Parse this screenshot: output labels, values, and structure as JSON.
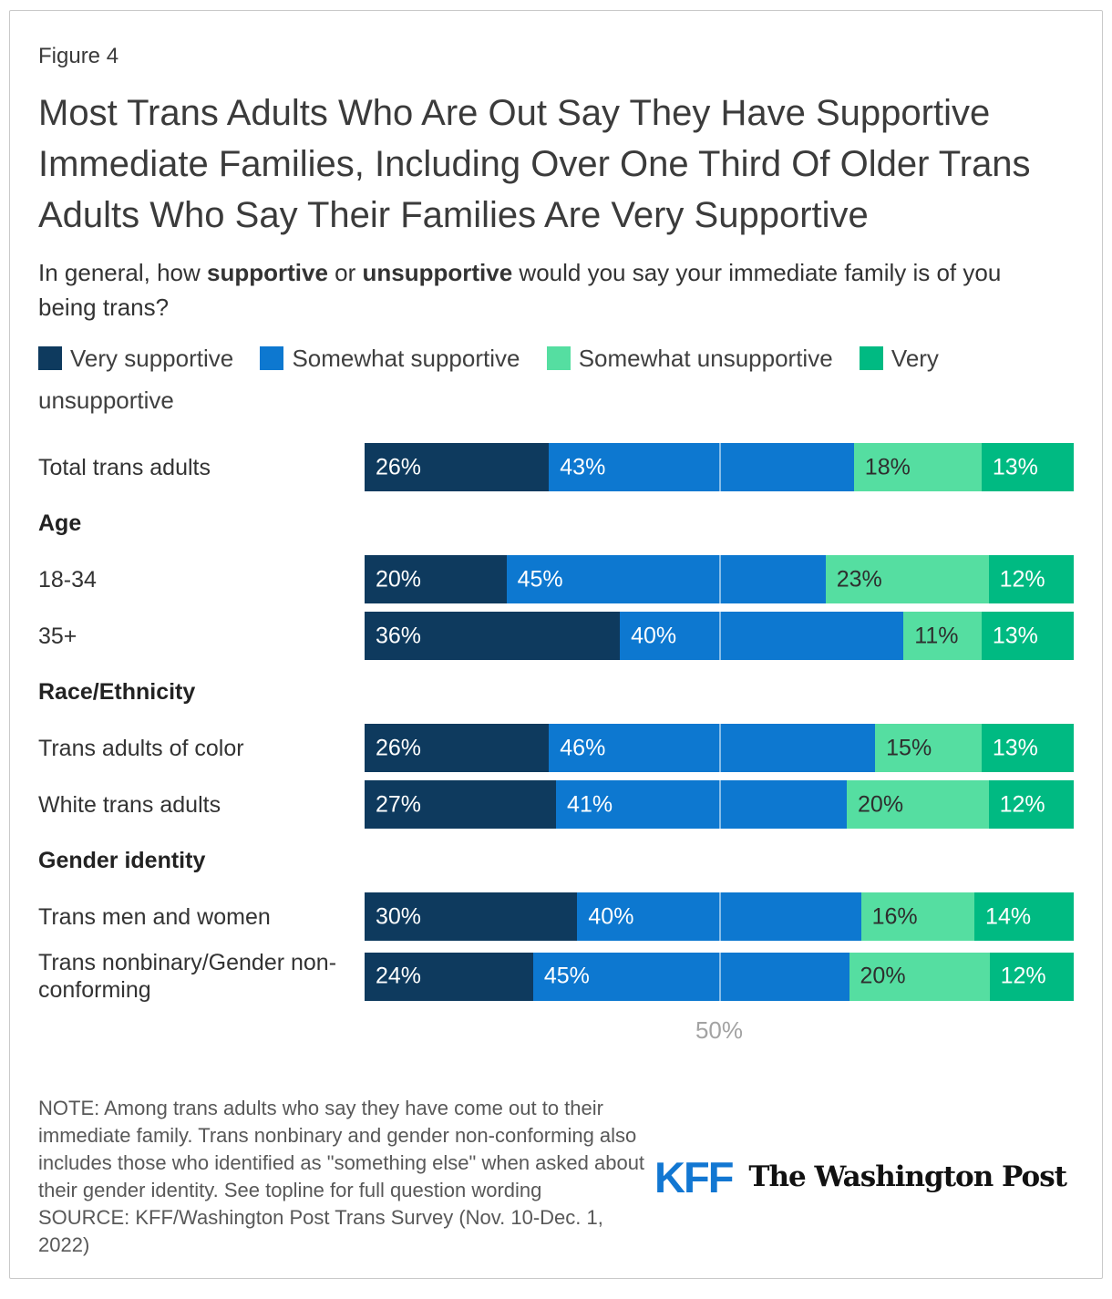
{
  "card": {
    "figure_label": "Figure 4",
    "title": "Most Trans Adults Who Are Out Say They Have Supportive Immediate Families, Including Over One Third Of Older Trans Adults Who Say Their Families Are Very Supportive",
    "question": {
      "prefix": "In general, how ",
      "bold1": "supportive",
      "middle": " or ",
      "bold2": "unsupportive",
      "suffix": " would you say your immediate family is of you being trans?"
    }
  },
  "legend": {
    "items": [
      {
        "label": "Very supportive",
        "color": "#0e3a5e"
      },
      {
        "label": "Somewhat supportive",
        "color": "#0d78d0"
      },
      {
        "label": "Somewhat unsupportive",
        "color": "#55dea1"
      },
      {
        "label": "Very unsupportive",
        "color": "#00ba82"
      }
    ]
  },
  "chart_data": {
    "type": "bar",
    "stacked": true,
    "orientation": "horizontal",
    "xlim": [
      0,
      100
    ],
    "gridline_at": 50,
    "value_suffix": "%",
    "series_names": [
      "Very supportive",
      "Somewhat supportive",
      "Somewhat unsupportive",
      "Very unsupportive"
    ],
    "series_colors": [
      "#0e3a5e",
      "#0d78d0",
      "#55dea1",
      "#00ba82"
    ],
    "dark_label_series_index": 2,
    "rows": [
      {
        "type": "bar",
        "label": "Total trans adults",
        "values": [
          26,
          43,
          18,
          13
        ]
      },
      {
        "type": "section",
        "label": "Age"
      },
      {
        "type": "bar",
        "label": "18-34",
        "values": [
          20,
          45,
          23,
          12
        ]
      },
      {
        "type": "bar",
        "label": "35+",
        "values": [
          36,
          40,
          11,
          13
        ]
      },
      {
        "type": "section",
        "label": "Race/Ethnicity"
      },
      {
        "type": "bar",
        "label": "Trans adults of color",
        "values": [
          26,
          46,
          15,
          13
        ]
      },
      {
        "type": "bar",
        "label": "White trans adults",
        "values": [
          27,
          41,
          20,
          12
        ]
      },
      {
        "type": "section",
        "label": "Gender identity"
      },
      {
        "type": "bar",
        "label": "Trans men and women",
        "values": [
          30,
          40,
          16,
          14
        ]
      },
      {
        "type": "bar",
        "label": "Trans nonbinary/Gender non-conforming",
        "values": [
          24,
          45,
          20,
          12
        ]
      }
    ]
  },
  "axis": {
    "tick_label": "50%"
  },
  "footer": {
    "note": "NOTE: Among trans adults who say they have come out to their immediate family. Trans nonbinary and gender non-conforming also includes those who identified as \"something else\" when asked about their gender identity. See topline for full question wording",
    "source": "SOURCE: KFF/Washington Post Trans Survey (Nov. 10-Dec. 1, 2022)",
    "logos": {
      "kff": "KFF",
      "wapo": "The Washington Post"
    }
  }
}
